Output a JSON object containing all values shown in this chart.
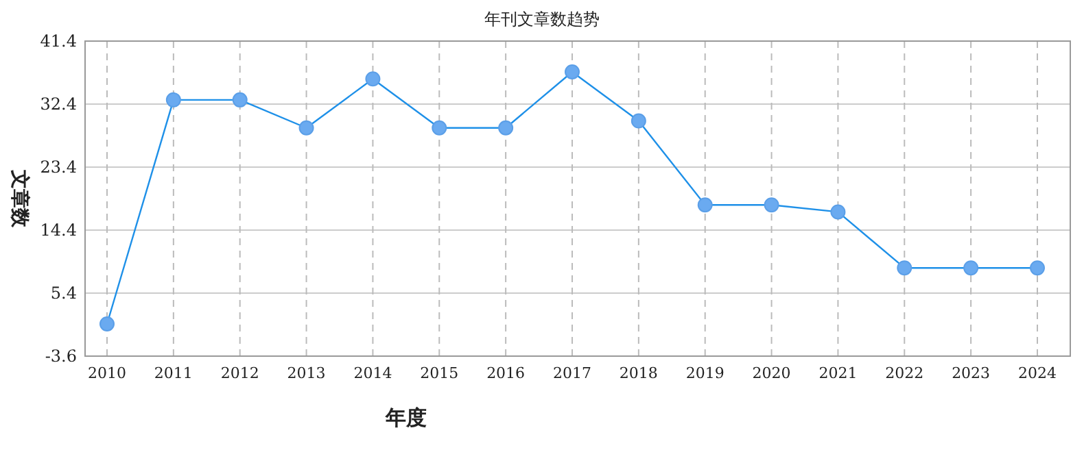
{
  "chart_data": {
    "type": "line",
    "title": "年刊文章数趋势",
    "xlabel": "年度",
    "ylabel": "文章数",
    "categories": [
      "2010",
      "2011",
      "2012",
      "2013",
      "2014",
      "2015",
      "2016",
      "2017",
      "2018",
      "2019",
      "2020",
      "2021",
      "2022",
      "2023",
      "2024"
    ],
    "series": [
      {
        "color": "#1e90e8",
        "values": [
          1,
          33,
          33,
          29,
          36,
          29,
          29,
          37,
          30,
          18,
          18,
          17,
          9,
          9,
          9
        ]
      }
    ],
    "ylim": [
      -3.6,
      41.4
    ],
    "yticks": [
      -3.6,
      5.4,
      14.4,
      23.4,
      32.4,
      41.4
    ],
    "grid": true,
    "marker": "circle",
    "line_style": "solid"
  }
}
